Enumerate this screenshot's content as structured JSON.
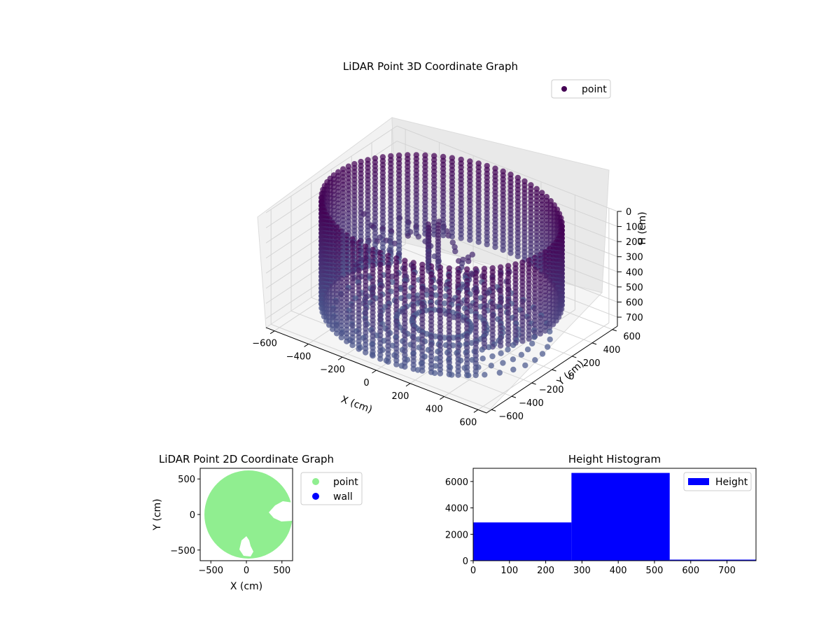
{
  "chart_data": [
    {
      "type": "scatter",
      "title": "LiDAR Point 3D Coordinate Graph",
      "xlabel": "X (cm)",
      "ylabel": "Y (cm)",
      "zlabel": "H (cm)",
      "xlim": [
        -650,
        650
      ],
      "ylim": [
        -650,
        650
      ],
      "zlim": [
        760,
        0
      ],
      "x_ticks": [
        -600,
        -400,
        -200,
        0,
        200,
        400,
        600
      ],
      "y_ticks": [
        -600,
        -400,
        -200,
        0,
        200,
        400,
        600
      ],
      "z_ticks": [
        0,
        100,
        200,
        300,
        400,
        500,
        600,
        700
      ],
      "legend": {
        "position": "top-right",
        "entries": [
          {
            "label": "point",
            "color": "#440154"
          }
        ]
      },
      "series": [
        {
          "name": "point",
          "color_low": "#440154",
          "color_high": "#4b5a8f"
        }
      ],
      "grid": true
    },
    {
      "type": "scatter",
      "title": "LiDAR Point 2D Coordinate Graph",
      "xlabel": "X (cm)",
      "ylabel": "Y (cm)",
      "xlim": [
        -650,
        650
      ],
      "ylim": [
        -650,
        650
      ],
      "x_ticks": [
        -500,
        0,
        500
      ],
      "y_ticks": [
        -500,
        0,
        500
      ],
      "legend": {
        "position": "right-outside",
        "entries": [
          {
            "label": "point",
            "color": "#90ee90"
          },
          {
            "label": "wall",
            "color": "#0000ff"
          }
        ]
      },
      "series": [
        {
          "name": "point",
          "color": "#90ee90"
        },
        {
          "name": "wall",
          "color": "#0000ff"
        }
      ]
    },
    {
      "type": "bar",
      "title": "Height Histogram",
      "xlim": [
        0,
        780
      ],
      "ylim": [
        0,
        7000
      ],
      "x_ticks": [
        0,
        100,
        200,
        300,
        400,
        500,
        600,
        700
      ],
      "y_ticks": [
        0,
        2000,
        4000,
        6000
      ],
      "bins": [
        {
          "from": 0,
          "to": 271,
          "count": 2900
        },
        {
          "from": 271,
          "to": 542,
          "count": 6650
        },
        {
          "from": 542,
          "to": 780,
          "count": 80
        }
      ],
      "color": "#0000ff",
      "legend": {
        "position": "top-right",
        "entries": [
          {
            "label": "Height",
            "color": "#0000ff"
          }
        ]
      }
    }
  ]
}
